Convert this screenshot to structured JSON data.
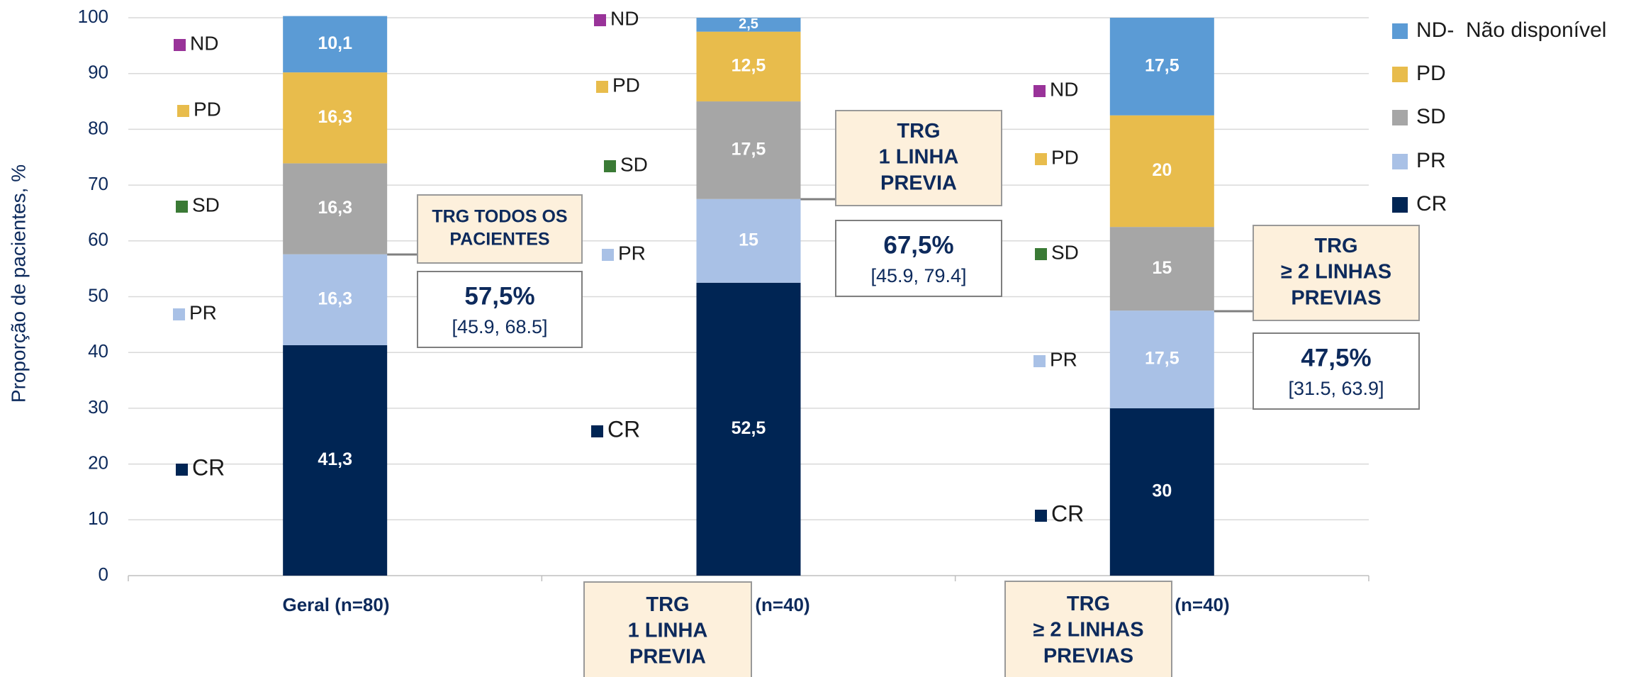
{
  "chart_data": {
    "type": "stacked_bar",
    "y_label": "Proporção de pacientes, %",
    "categories": [
      "Geral (n=80)",
      "(n=40)",
      "(n=40)"
    ],
    "series": [
      {
        "name": "CR",
        "color": "#002554",
        "values": [
          41.3,
          52.5,
          30
        ],
        "value_labels": [
          "41,3",
          "52,5",
          "30"
        ]
      },
      {
        "name": "PR",
        "color": "#a9c1e6",
        "values": [
          16.3,
          15,
          17.5
        ],
        "value_labels": [
          "16,3",
          "15",
          "17,5"
        ]
      },
      {
        "name": "SD",
        "color": "#a6a6a6",
        "values": [
          16.3,
          17.5,
          15
        ],
        "value_labels": [
          "16,3",
          "17,5",
          "15"
        ]
      },
      {
        "name": "PD",
        "color": "#e8bc4c",
        "values": [
          16.3,
          12.5,
          20
        ],
        "value_labels": [
          "16,3",
          "12,5",
          "20"
        ]
      },
      {
        "name": "ND-  Não disponível",
        "color": "#5b9bd5",
        "values": [
          10.1,
          2.5,
          17.5
        ],
        "value_labels": [
          "10,1",
          "2,5",
          "17,5"
        ]
      }
    ],
    "ylim": [
      0,
      100
    ],
    "yticks": [
      0,
      10,
      20,
      30,
      40,
      50,
      60,
      70,
      80,
      90,
      100
    ],
    "grid": true,
    "legend": "right",
    "side_labels": [
      "ND",
      "PD",
      "SD",
      "PR",
      "CR"
    ],
    "side_label_colors": [
      "#993399",
      "#e8bc4c",
      "#3a7a35",
      "#a9c1e6",
      "#002554"
    ],
    "groups": [
      {
        "box_title": [
          "TRG TODOS OS",
          "PACIENTES"
        ],
        "rate": "57,5%",
        "ci": "[45.9, 68.5]"
      },
      {
        "box_title": [
          "TRG",
          "1 LINHA",
          "PREVIA"
        ],
        "rate": "67,5%",
        "ci": "[45.9, 79.4]",
        "footer_box": [
          "TRG",
          "1 LINHA",
          "PREVIA"
        ]
      },
      {
        "box_title": [
          "TRG",
          "≥ 2 LINHAS",
          "PREVIAS"
        ],
        "rate": "47,5%",
        "ci": "[31.5, 63.9]",
        "footer_box": [
          "TRG",
          "≥ 2 LINHAS",
          "PREVIAS"
        ]
      }
    ]
  }
}
